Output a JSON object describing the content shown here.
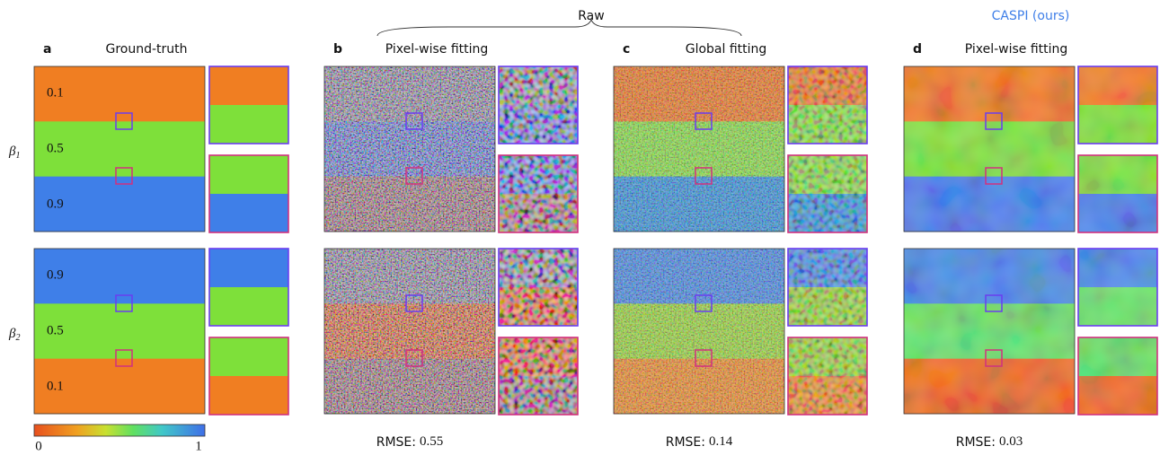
{
  "header": {
    "raw": "Raw",
    "caspi": "CASPI (ours)"
  },
  "panels": [
    {
      "letter": "a",
      "title": "Ground-truth"
    },
    {
      "letter": "b",
      "title": "Pixel-wise fitting",
      "rmse": 0.55
    },
    {
      "letter": "c",
      "title": "Global fitting",
      "rmse": 0.14
    },
    {
      "letter": "d",
      "title": "Pixel-wise fitting",
      "rmse": 0.03
    }
  ],
  "row_labels": [
    {
      "symbol": "β",
      "sub": "1"
    },
    {
      "symbol": "β",
      "sub": "2"
    }
  ],
  "ground_truth_values": [
    [
      0.1,
      0.5,
      0.9
    ],
    [
      0.9,
      0.5,
      0.1
    ]
  ],
  "colorbar": {
    "min": 0,
    "max": 1
  },
  "rmse_label": "RMSE:"
}
